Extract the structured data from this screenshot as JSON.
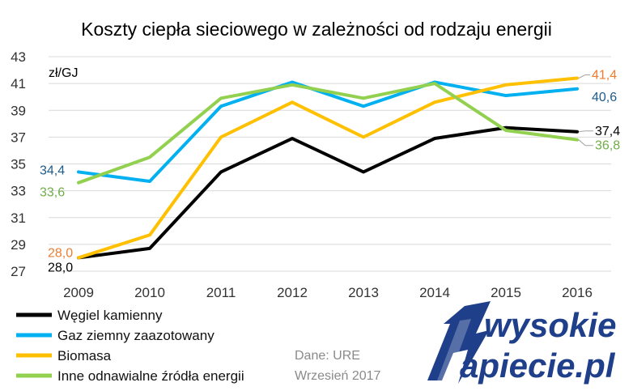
{
  "chart_data": {
    "type": "line",
    "title": "Koszty ciepła sieciowego w zależności od rodzaju energii",
    "unit_label": "zł/GJ",
    "ylim": [
      27,
      43
    ],
    "yticks": [
      "27",
      "29",
      "31",
      "33",
      "35",
      "37",
      "39",
      "41",
      "43"
    ],
    "categories": [
      "2009",
      "2010",
      "2011",
      "2012",
      "2013",
      "2014",
      "2015",
      "2016"
    ],
    "grid": true,
    "legend_position": "bottom-left",
    "series": [
      {
        "name": "Węgiel kamienny",
        "color": "#000000",
        "values": [
          28.0,
          28.7,
          34.4,
          36.9,
          34.4,
          36.9,
          37.7,
          37.4
        ]
      },
      {
        "name": "Gaz ziemny zaazotowany",
        "color": "#00b0f0",
        "values": [
          34.4,
          33.7,
          39.3,
          41.1,
          39.3,
          41.1,
          40.1,
          40.6
        ]
      },
      {
        "name": "Biomasa",
        "color": "#ffc000",
        "values": [
          28.0,
          29.7,
          37.0,
          39.6,
          37.0,
          39.6,
          40.9,
          41.4
        ]
      },
      {
        "name": "Inne odnawialne źródła energii",
        "color": "#92d050",
        "values": [
          33.6,
          35.5,
          39.9,
          40.9,
          39.9,
          41.0,
          37.5,
          36.8
        ]
      }
    ],
    "data_labels": [
      {
        "text": "28,0",
        "color": "#000000"
      },
      {
        "text": "28,0",
        "color": "#ed7d31"
      },
      {
        "text": "34,4",
        "color": "#1f5c8a"
      },
      {
        "text": "33,6",
        "color": "#70ad47"
      },
      {
        "text": "41,4",
        "color": "#ed7d31"
      },
      {
        "text": "40,6",
        "color": "#1f5c8a"
      },
      {
        "text": "37,4",
        "color": "#000000"
      },
      {
        "text": "36,8",
        "color": "#70ad47"
      }
    ]
  },
  "source": {
    "line1": "Dane: URE",
    "line2": "Wrzesień 2017"
  },
  "logo": {
    "line1": "wysokie",
    "line2": "apiecie.pl",
    "color": "#1f3f8a"
  }
}
